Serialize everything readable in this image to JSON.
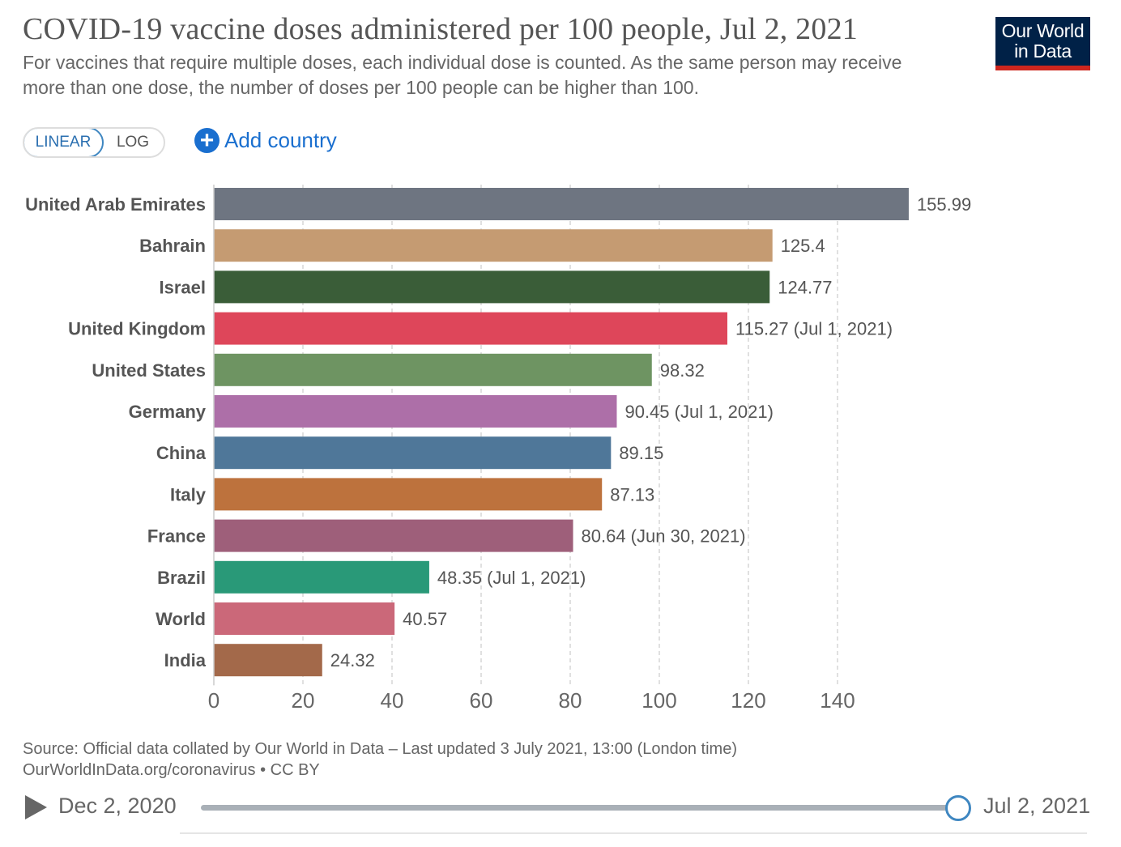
{
  "header": {
    "title": "COVID-19 vaccine doses administered per 100 people, Jul 2, 2021",
    "subtitle": "For vaccines that require multiple doses, each individual dose is counted. As the same person may receive more than one dose, the number of doses per 100 people can be higher than 100.",
    "logo_line1": "Our World",
    "logo_line2": "in Data"
  },
  "controls": {
    "linear_label": "LINEAR",
    "log_label": "LOG",
    "add_country_label": "Add country",
    "add_icon": "plus-circle-icon"
  },
  "footer": {
    "source_line1": "Source: Official data collated by Our World in Data – Last updated 3 July 2021, 13:00 (London time)",
    "source_line2": "OurWorldInData.org/coronavirus • CC BY"
  },
  "timeline": {
    "start_label": "Dec 2, 2020",
    "end_label": "Jul 2, 2021",
    "position": 1.0,
    "play_icon": "play-icon"
  },
  "chart_data": {
    "type": "bar",
    "orientation": "horizontal",
    "xlim": [
      0,
      160
    ],
    "xticks": [
      0,
      20,
      40,
      60,
      80,
      100,
      120,
      140
    ],
    "grid": true,
    "bars": [
      {
        "category": "United Arab Emirates",
        "value": 155.99,
        "label": "155.99",
        "color": "#6e7581"
      },
      {
        "category": "Bahrain",
        "value": 125.4,
        "label": "125.4",
        "color": "#c59b72"
      },
      {
        "category": "Israel",
        "value": 124.77,
        "label": "124.77",
        "color": "#3a5d38"
      },
      {
        "category": "United Kingdom",
        "value": 115.27,
        "label": "115.27 (Jul 1, 2021)",
        "color": "#de465a"
      },
      {
        "category": "United States",
        "value": 98.32,
        "label": "98.32",
        "color": "#6e9462"
      },
      {
        "category": "Germany",
        "value": 90.45,
        "label": "90.45 (Jul 1, 2021)",
        "color": "#ad6fa8"
      },
      {
        "category": "China",
        "value": 89.15,
        "label": "89.15",
        "color": "#4f7799"
      },
      {
        "category": "Italy",
        "value": 87.13,
        "label": "87.13",
        "color": "#bd723d"
      },
      {
        "category": "France",
        "value": 80.64,
        "label": "80.64 (Jun 30, 2021)",
        "color": "#9e5f7a"
      },
      {
        "category": "Brazil",
        "value": 48.35,
        "label": "48.35 (Jul 1, 2021)",
        "color": "#299978"
      },
      {
        "category": "World",
        "value": 40.57,
        "label": "40.57",
        "color": "#cb6879"
      },
      {
        "category": "India",
        "value": 24.32,
        "label": "24.32",
        "color": "#a3694a"
      }
    ]
  }
}
